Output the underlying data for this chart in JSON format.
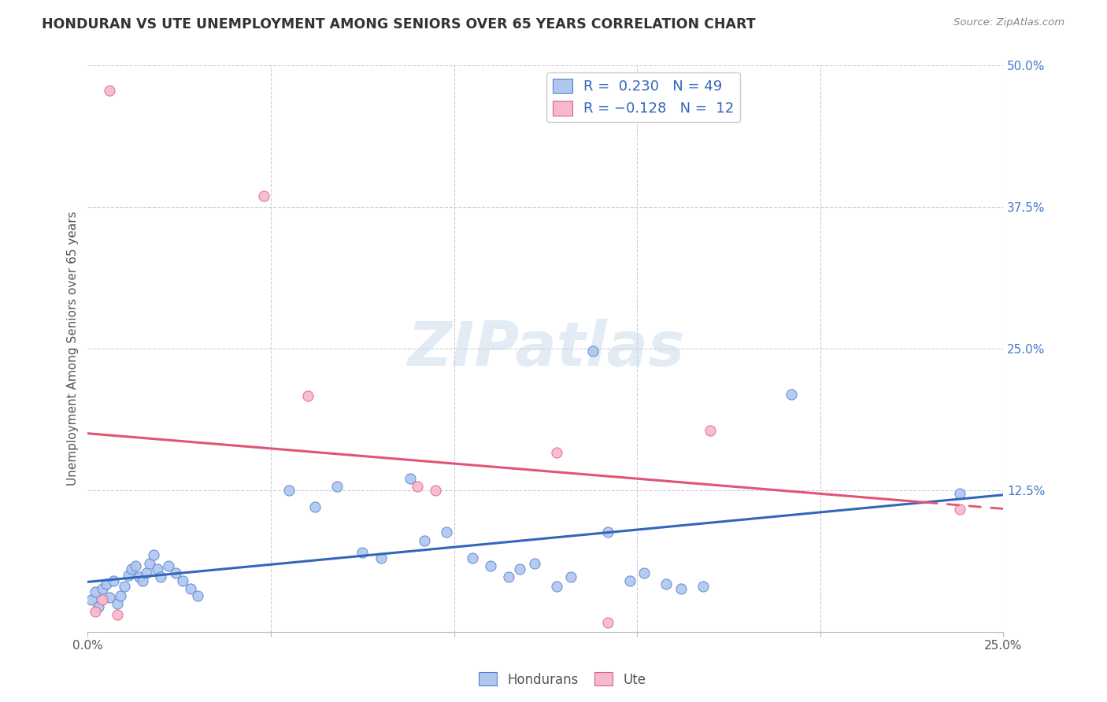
{
  "title": "HONDURAN VS UTE UNEMPLOYMENT AMONG SENIORS OVER 65 YEARS CORRELATION CHART",
  "source": "Source: ZipAtlas.com",
  "ylabel": "Unemployment Among Seniors over 65 years",
  "xlim": [
    0.0,
    0.25
  ],
  "ylim": [
    0.0,
    0.5
  ],
  "honduran_color": "#aec6f0",
  "honduran_edge_color": "#5580c8",
  "ute_color": "#f5b8cc",
  "ute_edge_color": "#e06080",
  "honduran_line_color": "#3366bb",
  "ute_line_color": "#e05575",
  "R_honduran": 0.23,
  "N_honduran": 49,
  "R_ute": -0.128,
  "N_ute": 12,
  "background_color": "#ffffff",
  "grid_color": "#ccccdd",
  "watermark": "ZIPatlas",
  "honduran_x": [
    0.001,
    0.002,
    0.003,
    0.004,
    0.005,
    0.006,
    0.007,
    0.008,
    0.009,
    0.01,
    0.011,
    0.012,
    0.013,
    0.014,
    0.015,
    0.016,
    0.017,
    0.018,
    0.019,
    0.02,
    0.022,
    0.024,
    0.026,
    0.028,
    0.03,
    0.055,
    0.062,
    0.068,
    0.075,
    0.08,
    0.088,
    0.092,
    0.098,
    0.105,
    0.11,
    0.115,
    0.118,
    0.122,
    0.128,
    0.132,
    0.138,
    0.142,
    0.148,
    0.152,
    0.158,
    0.162,
    0.168,
    0.192,
    0.238
  ],
  "honduran_y": [
    0.028,
    0.035,
    0.022,
    0.038,
    0.042,
    0.03,
    0.045,
    0.025,
    0.032,
    0.04,
    0.05,
    0.055,
    0.058,
    0.048,
    0.045,
    0.052,
    0.06,
    0.068,
    0.055,
    0.048,
    0.058,
    0.052,
    0.045,
    0.038,
    0.032,
    0.125,
    0.11,
    0.128,
    0.07,
    0.065,
    0.135,
    0.08,
    0.088,
    0.065,
    0.058,
    0.048,
    0.055,
    0.06,
    0.04,
    0.048,
    0.248,
    0.088,
    0.045,
    0.052,
    0.042,
    0.038,
    0.04,
    0.21,
    0.122
  ],
  "ute_x": [
    0.002,
    0.004,
    0.006,
    0.008,
    0.048,
    0.06,
    0.09,
    0.095,
    0.128,
    0.142,
    0.17,
    0.238
  ],
  "ute_y": [
    0.018,
    0.028,
    0.478,
    0.015,
    0.385,
    0.208,
    0.128,
    0.125,
    0.158,
    0.008,
    0.178,
    0.108
  ]
}
